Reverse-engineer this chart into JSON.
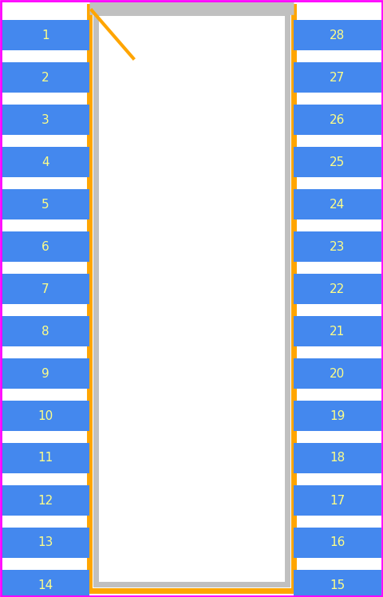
{
  "background_color": "#ffffff",
  "border_color": "#ff00ff",
  "pkg_outline_color": "#ffa500",
  "pkg_body_color": "#c0c0c0",
  "pkg_inner_color": "#ffffff",
  "pad_color": "#4488ee",
  "pad_text_color": "#ffff88",
  "pin1_marker_color": "#ffa500",
  "num_pins_per_side": 14,
  "left_pins": [
    1,
    2,
    3,
    4,
    5,
    6,
    7,
    8,
    9,
    10,
    11,
    12,
    13,
    14
  ],
  "right_pins": [
    28,
    27,
    26,
    25,
    24,
    23,
    22,
    21,
    20,
    19,
    18,
    17,
    16,
    15
  ],
  "fig_width": 4.8,
  "fig_height": 7.48,
  "dpi": 100
}
